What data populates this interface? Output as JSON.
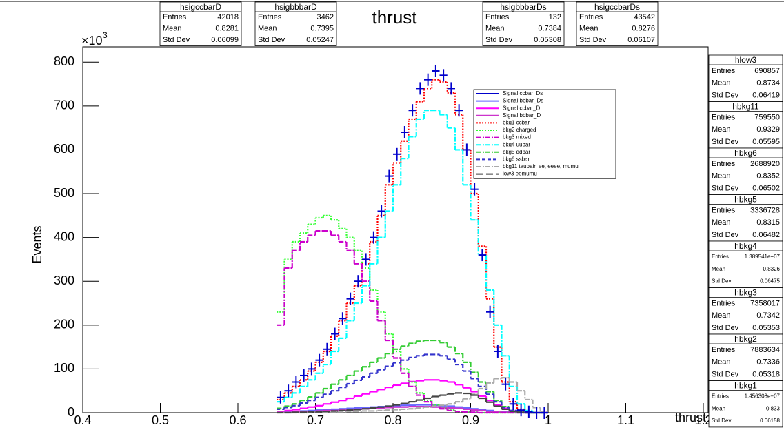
{
  "chart_data": {
    "type": "histogram",
    "title": "thrust",
    "x_label": "thrust",
    "y_label": "Events",
    "y_scale_base": "×10",
    "y_scale_exponent": "3",
    "xlim": [
      0.4,
      1.2
    ],
    "xticks": [
      0.4,
      0.5,
      0.6,
      0.7,
      0.8,
      0.9,
      1,
      1.1,
      1.2
    ],
    "ylim": [
      0,
      835
    ],
    "yticks": [
      0,
      100,
      200,
      300,
      400,
      500,
      600,
      700,
      800
    ],
    "bins": [
      0.65,
      0.66,
      0.67,
      0.68,
      0.69,
      0.7,
      0.71,
      0.72,
      0.73,
      0.74,
      0.75,
      0.76,
      0.77,
      0.78,
      0.79,
      0.8,
      0.81,
      0.82,
      0.83,
      0.84,
      0.85,
      0.86,
      0.87,
      0.88,
      0.89,
      0.9,
      0.91,
      0.92,
      0.93,
      0.94,
      0.95,
      0.96,
      0.97,
      0.98,
      0.99,
      1.0
    ],
    "series": [
      {
        "name": "Signal ccbar_Ds",
        "color": "#0000cc",
        "style": "markers",
        "values": [
          35,
          50,
          70,
          85,
          100,
          120,
          145,
          180,
          215,
          260,
          300,
          350,
          400,
          460,
          540,
          590,
          640,
          690,
          740,
          760,
          780,
          770,
          740,
          690,
          600,
          510,
          360,
          230,
          140,
          65,
          20,
          6,
          2,
          0,
          0
        ]
      },
      {
        "name": "Signal bbbar_Ds",
        "color": "#6666ff",
        "style": "solid",
        "values": [
          1,
          2,
          3,
          4,
          5,
          6,
          7,
          8,
          9,
          10,
          11,
          12,
          13,
          14,
          15,
          16,
          17,
          17,
          18,
          18,
          17,
          16,
          15,
          13,
          11,
          9,
          7,
          5,
          3,
          2,
          1,
          0,
          0,
          0,
          0
        ]
      },
      {
        "name": "Signal ccbar_D",
        "color": "#ff00ff",
        "style": "solid",
        "values": [
          3,
          5,
          7,
          10,
          13,
          16,
          20,
          24,
          28,
          33,
          38,
          43,
          48,
          53,
          58,
          63,
          67,
          71,
          73,
          75,
          75,
          73,
          70,
          64,
          57,
          48,
          38,
          28,
          18,
          10,
          4,
          1,
          0,
          0,
          0
        ]
      },
      {
        "name": "Signal bbbar_D",
        "color": "#cc33cc",
        "style": "solid",
        "values": [
          1,
          1,
          2,
          2,
          3,
          4,
          5,
          5,
          6,
          7,
          8,
          9,
          10,
          11,
          12,
          13,
          13,
          14,
          14,
          14,
          13,
          12,
          11,
          10,
          8,
          6,
          5,
          3,
          2,
          1,
          0,
          0,
          0,
          0,
          0
        ]
      },
      {
        "name": "bkg1 ccbar",
        "color": "#ff0000",
        "style": "dotted",
        "values": [
          30,
          45,
          60,
          75,
          95,
          115,
          140,
          175,
          210,
          250,
          290,
          340,
          390,
          450,
          520,
          570,
          620,
          670,
          710,
          740,
          760,
          755,
          730,
          680,
          600,
          500,
          380,
          260,
          150,
          70,
          25,
          8,
          2,
          0,
          0
        ]
      },
      {
        "name": "bkg2 charged",
        "color": "#33ff33",
        "style": "dotted",
        "values": [
          230,
          350,
          390,
          410,
          430,
          445,
          450,
          440,
          420,
          400,
          370,
          330,
          280,
          230,
          180,
          140,
          100,
          70,
          45,
          28,
          18,
          10,
          6,
          3,
          2,
          1,
          0,
          0,
          0,
          0,
          0,
          0,
          0,
          0,
          0
        ]
      },
      {
        "name": "bkg3 mixed",
        "color": "#cc00cc",
        "style": "dashdot",
        "values": [
          200,
          330,
          370,
          390,
          405,
          415,
          415,
          405,
          390,
          370,
          340,
          300,
          255,
          210,
          165,
          125,
          90,
          60,
          40,
          25,
          15,
          9,
          5,
          3,
          2,
          1,
          0,
          0,
          0,
          0,
          0,
          0,
          0,
          0,
          0
        ]
      },
      {
        "name": "bkg4 uubar",
        "color": "#00ffff",
        "style": "dashdot",
        "values": [
          25,
          35,
          45,
          60,
          75,
          90,
          110,
          140,
          170,
          210,
          250,
          290,
          340,
          400,
          460,
          520,
          580,
          630,
          670,
          690,
          690,
          680,
          650,
          600,
          520,
          440,
          360,
          280,
          200,
          130,
          60,
          20,
          5,
          0,
          0
        ]
      },
      {
        "name": "bkg5 ddbar",
        "color": "#33cc33",
        "style": "dashdot",
        "values": [
          10,
          15,
          20,
          28,
          36,
          45,
          55,
          65,
          75,
          85,
          95,
          105,
          115,
          125,
          135,
          145,
          152,
          158,
          163,
          165,
          165,
          160,
          150,
          135,
          115,
          92,
          70,
          48,
          28,
          14,
          5,
          2,
          0,
          0,
          0
        ]
      },
      {
        "name": "bkg6 ssbar",
        "color": "#3333cc",
        "style": "dashed",
        "values": [
          8,
          12,
          16,
          22,
          28,
          35,
          42,
          50,
          58,
          66,
          74,
          82,
          90,
          98,
          106,
          114,
          120,
          126,
          130,
          133,
          133,
          130,
          122,
          110,
          95,
          78,
          60,
          42,
          25,
          12,
          5,
          1,
          0,
          0,
          0
        ]
      },
      {
        "name": "bkg11 taupair, ee, eeee, mumu",
        "color": "#aaaaaa",
        "style": "dashdot",
        "values": [
          0,
          0,
          0,
          0,
          1,
          1,
          1,
          2,
          2,
          3,
          3,
          4,
          4,
          5,
          6,
          7,
          8,
          9,
          11,
          13,
          15,
          17,
          20,
          25,
          32,
          42,
          55,
          68,
          78,
          80,
          70,
          50,
          30,
          12,
          3
        ]
      },
      {
        "name": "low3 eemumu",
        "color": "#444444",
        "style": "longdash",
        "values": [
          0,
          0,
          1,
          1,
          2,
          2,
          3,
          4,
          5,
          6,
          7,
          9,
          11,
          13,
          15,
          18,
          21,
          25,
          29,
          33,
          37,
          40,
          43,
          45,
          44,
          40,
          33,
          24,
          15,
          8,
          3,
          1,
          0,
          0,
          0
        ]
      }
    ]
  },
  "stat_labels": [
    "Entries",
    "Mean",
    "Std Dev"
  ],
  "top_stats": [
    {
      "name": "hsigccbarD",
      "values": [
        "42018",
        "0.8281",
        "0.06099"
      ]
    },
    {
      "name": "hsigbbbarD",
      "values": [
        "3462",
        "0.7395",
        "0.05247"
      ]
    },
    {
      "name": "hsigbbbarDs",
      "values": [
        "132",
        "0.7384",
        "0.05308"
      ]
    },
    {
      "name": "hsigccbarDs",
      "values": [
        "43542",
        "0.8276",
        "0.06107"
      ]
    }
  ],
  "side_stats": [
    {
      "name": "hlow3",
      "values": [
        "690857",
        "0.8734",
        "0.06419"
      ]
    },
    {
      "name": "hbkg11",
      "values": [
        "759550",
        "0.9329",
        "0.05595"
      ]
    },
    {
      "name": "hbkg6",
      "values": [
        "2688920",
        "0.8352",
        "0.06502"
      ]
    },
    {
      "name": "hbkg5",
      "values": [
        "3336728",
        "0.8315",
        "0.06482"
      ]
    },
    {
      "name": "hbkg4",
      "values": [
        "1.389541e+07",
        "0.8326",
        "0.06475"
      ]
    },
    {
      "name": "hbkg3",
      "values": [
        "7358017",
        "0.7342",
        "0.05353"
      ]
    },
    {
      "name": "hbkg2",
      "values": [
        "7883634",
        "0.7336",
        "0.05318"
      ]
    },
    {
      "name": "hbkg1",
      "values": [
        "1.456308e+07",
        "0.833",
        "0.06158"
      ]
    }
  ]
}
